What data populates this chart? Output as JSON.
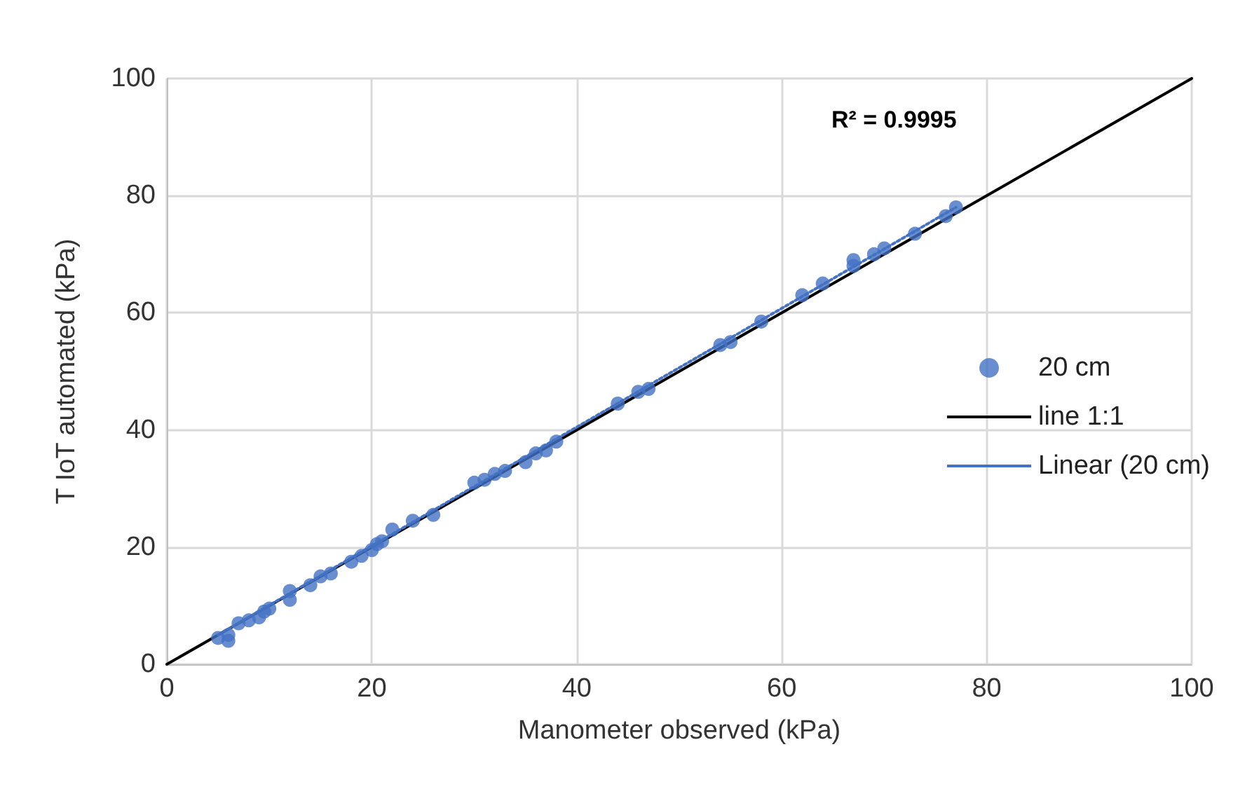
{
  "chart_data": {
    "type": "scatter",
    "xlabel": "Manometer observed (kPa)",
    "ylabel": "T IoT automated (kPa)",
    "annotations": [
      "R² = 0.9995"
    ],
    "xlim": [
      0,
      100
    ],
    "ylim": [
      0,
      100
    ],
    "xticks": [
      0,
      20,
      40,
      60,
      80,
      100
    ],
    "yticks": [
      0,
      20,
      40,
      60,
      80,
      100
    ],
    "grid": true,
    "legend": "right",
    "series": [
      {
        "name": "20 cm",
        "marker": "circle",
        "color": "#4472c4",
        "x": [
          5,
          6,
          6,
          7,
          8,
          9,
          9.5,
          10,
          12,
          12,
          14,
          15,
          16,
          18,
          19,
          20,
          20.5,
          21,
          22,
          24,
          26,
          30,
          31,
          32,
          33,
          35,
          36,
          37,
          38,
          44,
          46,
          47,
          54,
          55,
          58,
          62,
          64,
          67,
          67,
          69,
          70,
          73,
          76,
          77
        ],
        "values": [
          4.5,
          4,
          5,
          7,
          7.5,
          8,
          9,
          9.5,
          11,
          12.5,
          13.5,
          15,
          15.5,
          17.5,
          18.5,
          19.5,
          20.5,
          21,
          23,
          24.5,
          25.5,
          31,
          31.5,
          32.5,
          33,
          34.5,
          36,
          36.5,
          38,
          44.5,
          46.5,
          47,
          54.5,
          55,
          58.5,
          63,
          65,
          68,
          69,
          70,
          71,
          73.5,
          76.5,
          78
        ]
      },
      {
        "name": "line 1:1",
        "type": "line",
        "marker": "none",
        "color": "#000000",
        "line_style": "solid",
        "x": [
          0,
          100
        ],
        "values": [
          0,
          100
        ]
      },
      {
        "name": "Linear (20 cm)",
        "type": "line",
        "marker": "none",
        "color": "#4472c4",
        "line_style": "dotted",
        "x": [
          5,
          77
        ],
        "values": [
          5,
          78
        ]
      }
    ]
  }
}
